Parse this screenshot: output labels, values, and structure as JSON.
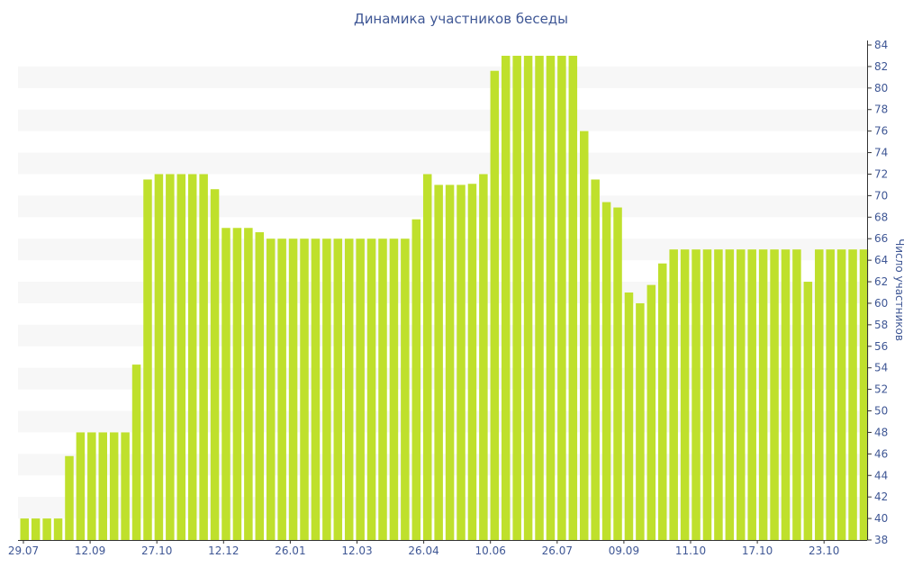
{
  "chart_data": {
    "type": "bar",
    "title": "Динамика участников беседы",
    "ylabel": "Число участников",
    "ylim": [
      38,
      84
    ],
    "y_ticks": [
      38,
      40,
      42,
      44,
      46,
      48,
      50,
      52,
      54,
      56,
      58,
      60,
      62,
      64,
      66,
      68,
      70,
      72,
      74,
      76,
      78,
      80,
      82,
      84
    ],
    "x_tick_labels": [
      "29.07",
      "12.09",
      "27.10",
      "12.12",
      "26.01",
      "12.03",
      "26.04",
      "10.06",
      "26.07",
      "09.09",
      "11.10",
      "17.10",
      "23.10"
    ],
    "values": [
      40,
      40,
      40,
      40,
      45.8,
      48,
      48,
      48,
      48,
      48,
      54.3,
      71.5,
      72,
      72,
      72,
      72,
      72,
      70.6,
      67,
      67,
      67,
      66.6,
      66,
      66,
      66,
      66,
      66,
      66,
      66,
      66,
      66,
      66,
      66,
      66,
      66,
      67.8,
      72,
      71,
      71,
      71,
      71.1,
      72,
      81.6,
      83,
      83,
      83,
      83,
      83,
      83,
      83,
      76,
      71.5,
      69.4,
      68.9,
      61,
      60,
      61.7,
      63.7,
      65,
      65,
      65,
      65,
      65,
      65,
      65,
      65,
      65,
      65,
      65,
      65,
      62,
      65,
      65,
      65,
      65,
      65
    ],
    "bar_color": "#bfe02c",
    "stripe_color": "#f7f7f7",
    "grid": false
  }
}
